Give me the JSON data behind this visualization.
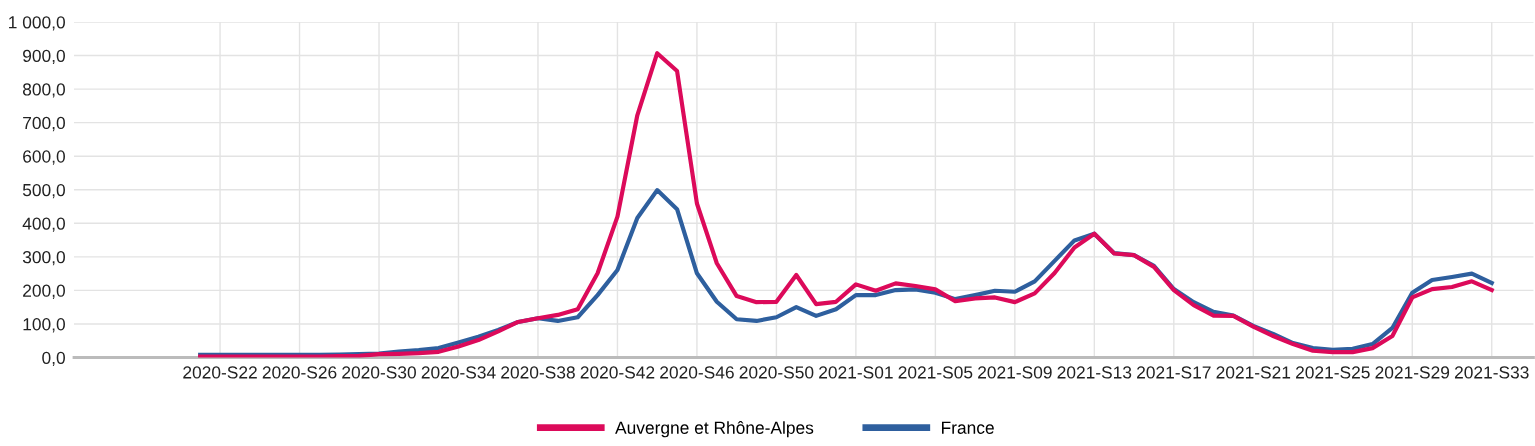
{
  "chart_data": {
    "type": "line",
    "categories": [
      null,
      "2020-S22",
      null,
      null,
      null,
      "2020-S26",
      null,
      null,
      null,
      "2020-S30",
      null,
      null,
      null,
      "2020-S34",
      null,
      null,
      null,
      "2020-S38",
      null,
      null,
      null,
      "2020-S42",
      null,
      null,
      null,
      "2020-S46",
      null,
      null,
      null,
      "2020-S50",
      null,
      null,
      null,
      "2021-S01",
      null,
      null,
      null,
      "2021-S05",
      null,
      null,
      null,
      "2021-S09",
      null,
      null,
      null,
      "2021-S13",
      null,
      null,
      null,
      "2021-S17",
      null,
      null,
      null,
      "2021-S21",
      null,
      null,
      null,
      "2021-S25",
      null,
      null,
      null,
      "2021-S29",
      null,
      null,
      null,
      "2021-S33"
    ],
    "series": [
      {
        "name": "Auvergne et Rhône-Alpes",
        "color": "#dc0a5a",
        "values": [
          3,
          3,
          3,
          3,
          3,
          3,
          3,
          4,
          5,
          10,
          11,
          13,
          17,
          33,
          52,
          78,
          106,
          117,
          127,
          144,
          251,
          420,
          722,
          907,
          854,
          459,
          281,
          183,
          165,
          166,
          246,
          159,
          166,
          218,
          199,
          221,
          213,
          203,
          168,
          176,
          179,
          165,
          191,
          252,
          328,
          369,
          310,
          305,
          270,
          201,
          156,
          125,
          124,
          92,
          64,
          40,
          20,
          16,
          16,
          28,
          64,
          179,
          204,
          210,
          227,
          201
        ]
      },
      {
        "name": "France",
        "color": "#2e5f9e",
        "values": [
          8,
          8,
          8,
          8,
          8,
          8,
          8,
          9,
          10,
          12,
          18,
          22,
          28,
          45,
          62,
          82,
          106,
          117,
          109,
          120,
          186,
          261,
          416,
          499,
          442,
          251,
          166,
          114,
          109,
          120,
          150,
          124,
          144,
          186,
          186,
          201,
          203,
          193,
          174,
          186,
          199,
          196,
          227,
          288,
          349,
          369,
          311,
          305,
          273,
          204,
          165,
          136,
          125,
          94,
          70,
          43,
          28,
          23,
          26,
          40,
          88,
          193,
          231,
          240,
          250,
          222
        ]
      }
    ],
    "ylim": [
      0,
      1000
    ],
    "yticks": [
      {
        "value": 0,
        "label": "0,0"
      },
      {
        "value": 100,
        "label": "100,0"
      },
      {
        "value": 200,
        "label": "200,0"
      },
      {
        "value": 300,
        "label": "300,0"
      },
      {
        "value": 400,
        "label": "400,0"
      },
      {
        "value": 500,
        "label": "500,0"
      },
      {
        "value": 600,
        "label": "600,0"
      },
      {
        "value": 700,
        "label": "700,0"
      },
      {
        "value": 800,
        "label": "800,0"
      },
      {
        "value": 900,
        "label": "900,0"
      },
      {
        "value": 1000,
        "label": "1 000,0"
      }
    ],
    "grid": true,
    "legend": "bottom",
    "marker": "none",
    "line_style": "solid"
  }
}
